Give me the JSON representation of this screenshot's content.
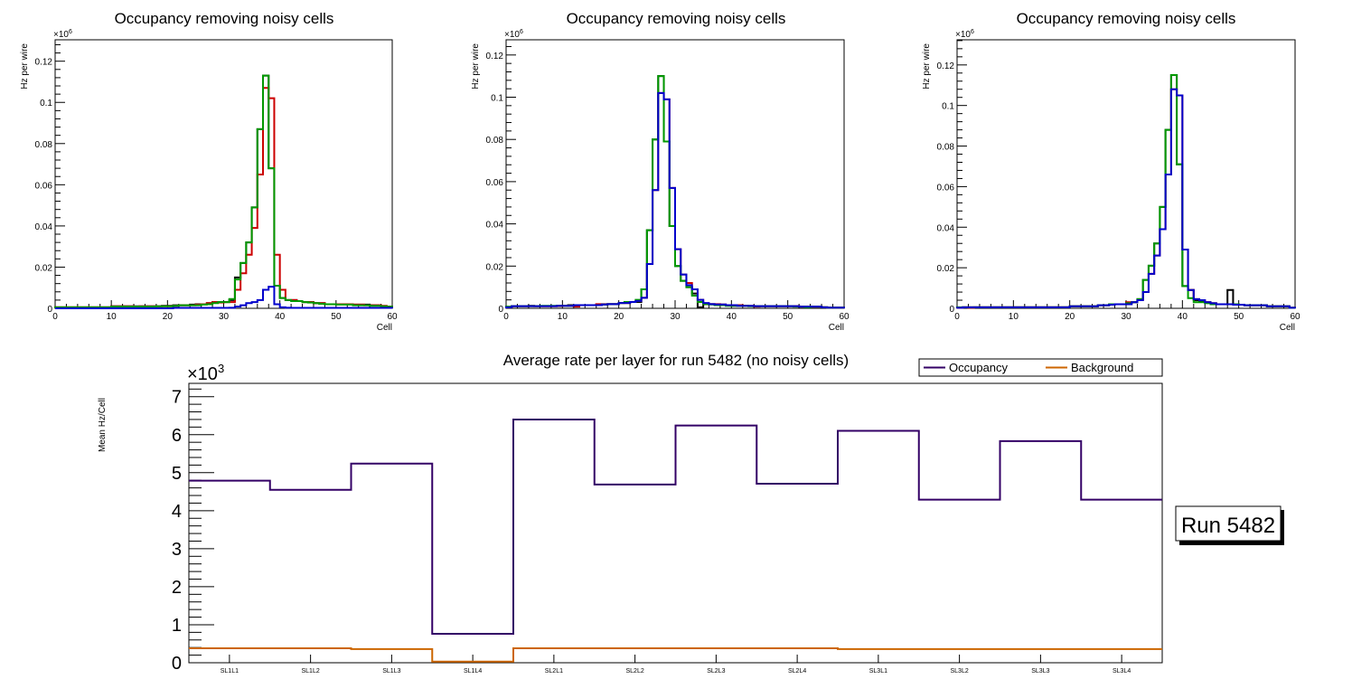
{
  "chart_data": [
    {
      "type": "histogram",
      "title": "Occupancy removing noisy cells",
      "xlabel": "Cell",
      "ylabel": "Hz per wire",
      "y_multiplier": "×10^6",
      "xlim": [
        0,
        60
      ],
      "ylim": [
        0,
        0.1304
      ],
      "yticks": [
        "0",
        "0.02",
        "0.04",
        "0.06",
        "0.08",
        "0.1",
        "0.12"
      ],
      "ytick_values": [
        0,
        0.02,
        0.04,
        0.06,
        0.08,
        0.1,
        0.12
      ],
      "xticks": [
        "0",
        "10",
        "20",
        "30",
        "40",
        "50",
        "60"
      ],
      "xtick_values": [
        0,
        10,
        20,
        30,
        40,
        50,
        60
      ],
      "series": [
        {
          "name": "black",
          "color": "#000000",
          "values": [
            0.0005,
            0.0005,
            0.0005,
            0.0005,
            0.0005,
            0.0005,
            0.0005,
            0.0005,
            0.0005,
            0.0005,
            0.001,
            0.001,
            0.001,
            0.001,
            0.001,
            0.001,
            0.001,
            0.001,
            0.001,
            0.0012,
            0.0012,
            0.0015,
            0.0015,
            0.0015,
            0.0018,
            0.002,
            0.002,
            0.0025,
            0.003,
            0.003,
            0.003,
            0.004,
            0.015,
            0.022,
            0.032,
            0.049,
            0.087,
            0.113,
            0.068,
            0.011,
            0.005,
            0.004,
            0.004,
            0.0035,
            0.003,
            0.003,
            0.0025,
            0.0025,
            0.002,
            0.002,
            0.002,
            0.002,
            0.002,
            0.0018,
            0.0018,
            0.0018,
            0.0015,
            0.0015,
            0.001,
            0.0008
          ]
        },
        {
          "name": "red",
          "color": "#cc0000",
          "values": [
            0.0005,
            0.0005,
            0.0005,
            0.0005,
            0.0005,
            0.0005,
            0.0005,
            0.0005,
            0.0005,
            0.0005,
            0.001,
            0.001,
            0.001,
            0.001,
            0.0008,
            0.001,
            0.001,
            0.001,
            0.001,
            0.001,
            0.001,
            0.0012,
            0.0015,
            0.0015,
            0.0015,
            0.0018,
            0.002,
            0.0025,
            0.003,
            0.0028,
            0.003,
            0.003,
            0.009,
            0.017,
            0.026,
            0.039,
            0.065,
            0.107,
            0.102,
            0.026,
            0.009,
            0.004,
            0.004,
            0.0035,
            0.003,
            0.003,
            0.0025,
            0.0025,
            0.002,
            0.002,
            0.002,
            0.002,
            0.002,
            0.0018,
            0.0018,
            0.0015,
            0.0015,
            0.0015,
            0.0012,
            0.0008
          ]
        },
        {
          "name": "green",
          "color": "#009900",
          "values": [
            0.0005,
            0.0005,
            0.0005,
            0.0005,
            0.0005,
            0.0005,
            0.0005,
            0.0005,
            0.0005,
            0.0005,
            0.0008,
            0.0008,
            0.0008,
            0.0008,
            0.0008,
            0.0008,
            0.0008,
            0.0008,
            0.001,
            0.001,
            0.001,
            0.0012,
            0.0015,
            0.0015,
            0.0015,
            0.0015,
            0.0018,
            0.002,
            0.0025,
            0.003,
            0.003,
            0.0045,
            0.014,
            0.022,
            0.032,
            0.049,
            0.087,
            0.113,
            0.068,
            0.011,
            0.005,
            0.004,
            0.0035,
            0.0035,
            0.003,
            0.0028,
            0.0025,
            0.0022,
            0.002,
            0.002,
            0.0018,
            0.0018,
            0.0018,
            0.0015,
            0.0015,
            0.0015,
            0.0012,
            0.0012,
            0.001,
            0.0008
          ]
        },
        {
          "name": "blue",
          "color": "#0000cc",
          "values": [
            0,
            0,
            0,
            0,
            0,
            0,
            0,
            0,
            0,
            0,
            0,
            0,
            0,
            0,
            0,
            0,
            0,
            0,
            0,
            0,
            0,
            0.0002,
            0.0002,
            0.0002,
            0.0002,
            0.0002,
            0.0002,
            0.0002,
            0.0002,
            0.0002,
            0.0002,
            0.0003,
            0.0008,
            0.0015,
            0.0025,
            0.003,
            0.004,
            0.009,
            0.0105,
            0.002,
            0.0005,
            0.0003,
            0.0002,
            0.0002,
            0.0002,
            0.0002,
            0.0002,
            0.0002,
            0.0002,
            0.0002,
            0.0002,
            0.0002,
            0.0002,
            0.0002,
            0.0002,
            0.0002,
            0.0002,
            0.0002,
            0.0002,
            0.0002
          ]
        }
      ]
    },
    {
      "type": "histogram",
      "title": "Occupancy removing noisy cells",
      "xlabel": "Cell",
      "ylabel": "Hz per wire",
      "y_multiplier": "×10^6",
      "xlim": [
        0,
        60
      ],
      "ylim": [
        0,
        0.1272
      ],
      "yticks": [
        "0",
        "0.02",
        "0.04",
        "0.06",
        "0.08",
        "0.1",
        "0.12"
      ],
      "ytick_values": [
        0,
        0.02,
        0.04,
        0.06,
        0.08,
        0.1,
        0.12
      ],
      "xticks": [
        "0",
        "10",
        "20",
        "30",
        "40",
        "50",
        "60"
      ],
      "xtick_values": [
        0,
        10,
        20,
        30,
        40,
        50,
        60
      ],
      "series": [
        {
          "name": "black",
          "color": "#000000",
          "values": [
            0.0005,
            0.001,
            0.001,
            0.001,
            0.0012,
            0.001,
            0.001,
            0.001,
            0.001,
            0.0012,
            0.0012,
            0.0015,
            0.0015,
            0.0015,
            0.0015,
            0.0015,
            0.0018,
            0.0018,
            0.002,
            0.002,
            0.0025,
            0.0025,
            0.003,
            0.003,
            0.009,
            0.037,
            0.08,
            0.11,
            0.079,
            0.039,
            0.02,
            0.013,
            0.01,
            0.007,
            0.0005,
            0.002,
            0.002,
            0.0018,
            0.0015,
            0.0015,
            0.0012,
            0.0012,
            0.0012,
            0.001,
            0.001,
            0.001,
            0.001,
            0.001,
            0.001,
            0.001,
            0.001,
            0.001,
            0.0008,
            0.0008,
            0.0008,
            0.0008,
            0.0005,
            0.0003,
            0.0003,
            0.0003
          ]
        },
        {
          "name": "red",
          "color": "#cc0000",
          "values": [
            0.0005,
            0.001,
            0.001,
            0.001,
            0.001,
            0.001,
            0.001,
            0.001,
            0.001,
            0.001,
            0.0012,
            0.0012,
            0.0008,
            0.0015,
            0.0015,
            0.0015,
            0.002,
            0.002,
            0.002,
            0.002,
            0.0025,
            0.0025,
            0.003,
            0.0035,
            0.005,
            0.021,
            0.056,
            0.102,
            0.099,
            0.057,
            0.028,
            0.016,
            0.012,
            0.009,
            0.004,
            0.002,
            0.002,
            0.002,
            0.0018,
            0.0015,
            0.0015,
            0.0015,
            0.0012,
            0.0012,
            0.0008,
            0.001,
            0.001,
            0.001,
            0.001,
            0.001,
            0.001,
            0.001,
            0.0008,
            0.0008,
            0.0008,
            0.0008,
            0.0005,
            0.0003,
            0.0003,
            0.0003
          ]
        },
        {
          "name": "green",
          "color": "#009900",
          "values": [
            0.0008,
            0.001,
            0.001,
            0.001,
            0.001,
            0.001,
            0.0012,
            0.0012,
            0.0012,
            0.0012,
            0.0012,
            0.0012,
            0.0015,
            0.0015,
            0.0015,
            0.0015,
            0.0015,
            0.0018,
            0.002,
            0.002,
            0.0025,
            0.003,
            0.003,
            0.004,
            0.009,
            0.037,
            0.08,
            0.11,
            0.079,
            0.039,
            0.02,
            0.013,
            0.01,
            0.006,
            0.003,
            0.002,
            0.0018,
            0.0015,
            0.0015,
            0.0012,
            0.0012,
            0.0012,
            0.0012,
            0.001,
            0.001,
            0.001,
            0.001,
            0.001,
            0.001,
            0.001,
            0.001,
            0.0008,
            0.0008,
            0.0005,
            0.0008,
            0.0008,
            0.0005,
            0.0003,
            0.0003,
            0.0003
          ]
        },
        {
          "name": "blue",
          "color": "#0000cc",
          "values": [
            0.0005,
            0.001,
            0.001,
            0.001,
            0.001,
            0.001,
            0.001,
            0.001,
            0.001,
            0.0012,
            0.0012,
            0.0012,
            0.0015,
            0.0015,
            0.0015,
            0.0015,
            0.0015,
            0.0018,
            0.002,
            0.002,
            0.0025,
            0.0025,
            0.003,
            0.0035,
            0.005,
            0.021,
            0.056,
            0.102,
            0.099,
            0.057,
            0.028,
            0.016,
            0.011,
            0.009,
            0.004,
            0.0025,
            0.002,
            0.0018,
            0.0018,
            0.0015,
            0.0015,
            0.0012,
            0.0012,
            0.0012,
            0.001,
            0.001,
            0.001,
            0.001,
            0.001,
            0.001,
            0.001,
            0.001,
            0.0008,
            0.0008,
            0.0008,
            0.0008,
            0.0005,
            0.0003,
            0.0003,
            0.0003
          ]
        }
      ]
    },
    {
      "type": "histogram",
      "title": "Occupancy removing noisy cells",
      "xlabel": "Cell",
      "ylabel": "Hz per wire",
      "y_multiplier": "×10^6",
      "xlim": [
        0,
        60
      ],
      "ylim": [
        0,
        0.1324
      ],
      "yticks": [
        "0",
        "0.02",
        "0.04",
        "0.06",
        "0.08",
        "0.1",
        "0.12"
      ],
      "ytick_values": [
        0,
        0.02,
        0.04,
        0.06,
        0.08,
        0.1,
        0.12
      ],
      "xticks": [
        "0",
        "10",
        "20",
        "30",
        "40",
        "50",
        "60"
      ],
      "xtick_values": [
        0,
        10,
        20,
        30,
        40,
        50,
        60
      ],
      "series": [
        {
          "name": "black",
          "color": "#000000",
          "values": [
            0.0003,
            0.0005,
            0.0005,
            0.0005,
            0.0005,
            0.0005,
            0.0005,
            0.0005,
            0.0005,
            0.0005,
            0.0005,
            0.0005,
            0.0005,
            0.0005,
            0.0005,
            0.0005,
            0.0005,
            0.0005,
            0.0005,
            0.0005,
            0.001,
            0.001,
            0.001,
            0.001,
            0.001,
            0.0015,
            0.0015,
            0.002,
            0.002,
            0.002,
            0.0025,
            0.003,
            0.0045,
            0.014,
            0.021,
            0.032,
            0.05,
            0.088,
            0.115,
            0.071,
            0.011,
            0.009,
            0.004,
            0.0035,
            0.003,
            0.0025,
            0.002,
            0.002,
            0.009,
            0.002,
            0.0018,
            0.0015,
            0.0015,
            0.0015,
            0.0015,
            0.001,
            0.001,
            0.001,
            0.001,
            0.0003
          ]
        },
        {
          "name": "red",
          "color": "#cc0000",
          "values": [
            0.0003,
            0.0005,
            0.0003,
            0.0005,
            0.0005,
            0.0005,
            0.0005,
            0.0005,
            0.0005,
            0.0005,
            0.0005,
            0.0005,
            0.0005,
            0.0005,
            0.0005,
            0.0005,
            0.0005,
            0.0005,
            0.0005,
            0.0005,
            0.001,
            0.001,
            0.001,
            0.001,
            0.001,
            0.0015,
            0.0015,
            0.0018,
            0.002,
            0.002,
            0.003,
            0.003,
            0.004,
            0.008,
            0.017,
            0.026,
            0.039,
            0.066,
            0.108,
            0.105,
            0.029,
            0.009,
            0.0045,
            0.004,
            0.003,
            0.0025,
            0.002,
            0.002,
            0.002,
            0.0018,
            0.0018,
            0.0015,
            0.0015,
            0.0015,
            0.0015,
            0.001,
            0.001,
            0.001,
            0.001,
            0.0003
          ]
        },
        {
          "name": "green",
          "color": "#009900",
          "values": [
            0.0005,
            0.0005,
            0.0005,
            0.0005,
            0.0005,
            0.0005,
            0.0005,
            0.0005,
            0.0005,
            0.0005,
            0.0005,
            0.0005,
            0.0005,
            0.0005,
            0.0005,
            0.0005,
            0.0005,
            0.0005,
            0.0005,
            0.0005,
            0.001,
            0.001,
            0.001,
            0.001,
            0.001,
            0.0015,
            0.0015,
            0.002,
            0.002,
            0.002,
            0.0025,
            0.003,
            0.0045,
            0.014,
            0.021,
            0.032,
            0.05,
            0.088,
            0.115,
            0.071,
            0.011,
            0.005,
            0.003,
            0.003,
            0.0025,
            0.002,
            0.002,
            0.002,
            0.002,
            0.002,
            0.0018,
            0.0015,
            0.0015,
            0.0015,
            0.0015,
            0.001,
            0.001,
            0.001,
            0.001,
            0.0003
          ]
        },
        {
          "name": "blue",
          "color": "#0000cc",
          "values": [
            0.0003,
            0.0005,
            0.0005,
            0.0005,
            0.0005,
            0.0005,
            0.0005,
            0.0005,
            0.0005,
            0.0005,
            0.0005,
            0.0005,
            0.0005,
            0.0005,
            0.0005,
            0.0005,
            0.0005,
            0.0005,
            0.0005,
            0.0005,
            0.001,
            0.001,
            0.001,
            0.001,
            0.001,
            0.0015,
            0.0015,
            0.0018,
            0.002,
            0.002,
            0.002,
            0.003,
            0.004,
            0.008,
            0.017,
            0.026,
            0.039,
            0.066,
            0.108,
            0.105,
            0.029,
            0.009,
            0.0045,
            0.004,
            0.003,
            0.0025,
            0.002,
            0.002,
            0.002,
            0.0018,
            0.0018,
            0.0015,
            0.0015,
            0.0015,
            0.0015,
            0.001,
            0.001,
            0.001,
            0.001,
            0.0003
          ]
        }
      ]
    },
    {
      "type": "line",
      "title": "Average rate per layer for run 5482 (no noisy cells)",
      "xlabel": "",
      "ylabel": "Mean Hz/Cell",
      "y_multiplier": "×10^3",
      "ylim": [
        0,
        7.35
      ],
      "yticks": [
        "0",
        "1",
        "2",
        "3",
        "4",
        "5",
        "6",
        "7"
      ],
      "ytick_values": [
        0,
        1,
        2,
        3,
        4,
        5,
        6,
        7
      ],
      "categories": [
        "SL1L1",
        "SL1L2",
        "SL1L3",
        "SL1L4",
        "SL2L1",
        "SL2L2",
        "SL2L3",
        "SL2L4",
        "SL3L1",
        "SL3L2",
        "SL3L3",
        "SL3L4"
      ],
      "legend": {
        "position": "top-right"
      },
      "series": [
        {
          "name": "Occupancy",
          "color": "#330066",
          "values": [
            4.79,
            4.55,
            5.24,
            0.76,
            6.4,
            4.69,
            6.24,
            4.71,
            6.1,
            4.29,
            5.83,
            4.29
          ]
        },
        {
          "name": "Background",
          "color": "#cc6600",
          "values": [
            0.38,
            0.38,
            0.36,
            0.03,
            0.38,
            0.38,
            0.38,
            0.38,
            0.36,
            0.36,
            0.36,
            0.36
          ]
        }
      ],
      "annotation": "Run 5482"
    }
  ]
}
